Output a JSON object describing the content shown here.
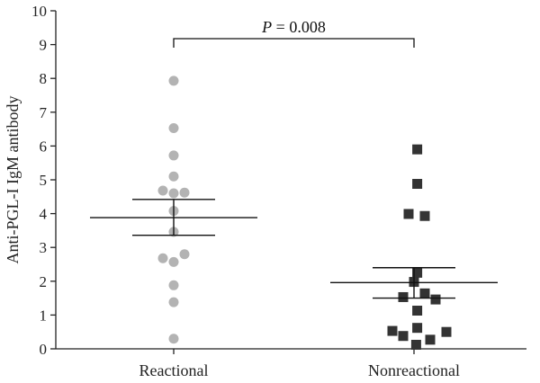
{
  "chart_data": {
    "type": "scatter",
    "ylabel": "Anti-PGL-I IgM antibody",
    "ylim": [
      0,
      10
    ],
    "yticks": [
      "0",
      "1",
      "2",
      "3",
      "4",
      "5",
      "6",
      "7",
      "8",
      "9",
      "10"
    ],
    "categories": [
      "Reactional",
      "Nonreactional"
    ],
    "annotation": {
      "p_symbol": "P",
      "p_text": " = 0.008",
      "between": [
        "Reactional",
        "Nonreactional"
      ]
    },
    "groups": [
      {
        "category": "Reactional",
        "marker": "circle",
        "color": "#b3b3b3",
        "mean": 3.88,
        "sem_upper": 4.42,
        "sem_lower": 3.36,
        "points": [
          {
            "offset": 0,
            "y": 7.93
          },
          {
            "offset": 0,
            "y": 6.53
          },
          {
            "offset": 0,
            "y": 5.72
          },
          {
            "offset": 0,
            "y": 5.1
          },
          {
            "offset": -1,
            "y": 4.68
          },
          {
            "offset": 1,
            "y": 4.62
          },
          {
            "offset": 0,
            "y": 4.6
          },
          {
            "offset": 0,
            "y": 4.08
          },
          {
            "offset": 0,
            "y": 3.46
          },
          {
            "offset": -1,
            "y": 2.68
          },
          {
            "offset": 1,
            "y": 2.8
          },
          {
            "offset": 0,
            "y": 2.57
          },
          {
            "offset": 0,
            "y": 1.88
          },
          {
            "offset": 0,
            "y": 1.38
          },
          {
            "offset": 0,
            "y": 0.3
          }
        ]
      },
      {
        "category": "Nonreactional",
        "marker": "square",
        "color": "#333333",
        "mean": 1.96,
        "sem_upper": 2.4,
        "sem_lower": 1.5,
        "points": [
          {
            "offset": 0.3,
            "y": 5.9
          },
          {
            "offset": 0.3,
            "y": 4.88
          },
          {
            "offset": -0.5,
            "y": 3.99
          },
          {
            "offset": 1,
            "y": 3.93
          },
          {
            "offset": 0.3,
            "y": 2.25
          },
          {
            "offset": 0,
            "y": 1.98
          },
          {
            "offset": -1,
            "y": 1.53
          },
          {
            "offset": 1,
            "y": 1.64
          },
          {
            "offset": 2,
            "y": 1.46
          },
          {
            "offset": 0.3,
            "y": 1.13
          },
          {
            "offset": 0.3,
            "y": 0.62
          },
          {
            "offset": -2,
            "y": 0.53
          },
          {
            "offset": -1,
            "y": 0.38
          },
          {
            "offset": 1.5,
            "y": 0.27
          },
          {
            "offset": 3,
            "y": 0.5
          },
          {
            "offset": 0.2,
            "y": 0.12
          }
        ]
      }
    ]
  }
}
